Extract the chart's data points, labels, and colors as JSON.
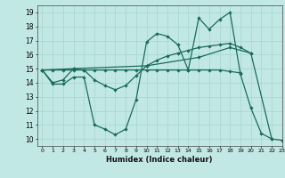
{
  "title": "",
  "xlabel": "Humidex (Indice chaleur)",
  "xlim": [
    -0.5,
    23
  ],
  "ylim": [
    9.5,
    19.5
  ],
  "yticks": [
    10,
    11,
    12,
    13,
    14,
    15,
    16,
    17,
    18,
    19
  ],
  "xticks": [
    0,
    1,
    2,
    3,
    4,
    5,
    6,
    7,
    8,
    9,
    10,
    11,
    12,
    13,
    14,
    15,
    16,
    17,
    18,
    19,
    20,
    21,
    22,
    23
  ],
  "bg_color": "#c2e8e5",
  "grid_color": "#a8d8d4",
  "line_color": "#1a6b5a",
  "lines": [
    {
      "x": [
        0,
        1,
        2,
        3,
        4,
        5,
        6,
        7,
        8,
        9,
        10,
        11,
        12,
        13,
        14,
        15,
        16,
        17,
        18,
        19,
        20,
        21,
        22
      ],
      "y": [
        14.9,
        13.9,
        13.9,
        14.4,
        14.4,
        11.0,
        10.7,
        10.3,
        10.7,
        12.8,
        16.9,
        17.5,
        17.3,
        16.7,
        14.9,
        18.6,
        17.8,
        18.5,
        19.0,
        14.6,
        12.2,
        10.4,
        10.0
      ]
    },
    {
      "x": [
        0,
        1,
        2,
        3,
        4,
        5,
        6,
        7,
        8,
        9,
        10,
        11,
        12,
        13,
        14,
        15,
        16,
        17,
        18,
        19,
        20
      ],
      "y": [
        14.9,
        14.0,
        14.2,
        15.0,
        14.9,
        14.2,
        13.8,
        13.5,
        13.8,
        14.5,
        15.2,
        15.6,
        15.9,
        16.1,
        16.3,
        16.5,
        16.6,
        16.7,
        16.8,
        16.5,
        16.1
      ]
    },
    {
      "x": [
        0,
        1,
        2,
        3,
        4,
        5,
        6,
        7,
        8,
        9,
        10,
        11,
        12,
        13,
        14,
        15,
        16,
        17,
        18,
        19
      ],
      "y": [
        14.9,
        14.9,
        14.9,
        14.9,
        14.9,
        14.9,
        14.9,
        14.9,
        14.9,
        14.9,
        14.9,
        14.9,
        14.9,
        14.9,
        14.9,
        14.9,
        14.9,
        14.9,
        14.8,
        14.7
      ]
    },
    {
      "x": [
        0,
        3,
        10,
        15,
        18,
        20,
        22,
        23
      ],
      "y": [
        14.9,
        15.0,
        15.2,
        15.8,
        16.5,
        16.1,
        10.0,
        9.9
      ]
    }
  ]
}
